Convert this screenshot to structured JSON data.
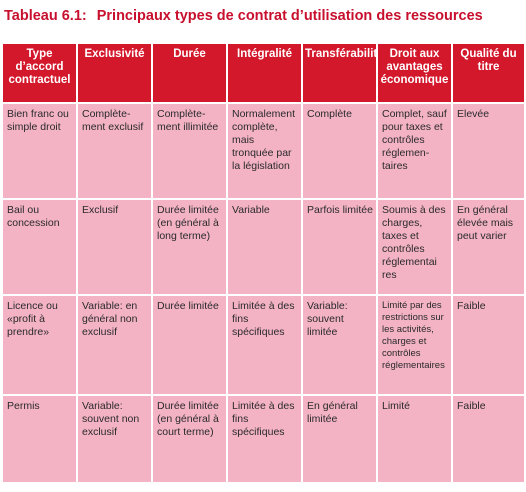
{
  "caption": {
    "number": "Tableau 6.1:",
    "title": "Principaux types de contrat d’utilisation des ressources"
  },
  "colors": {
    "caption": "#c8102e",
    "header_bg": "#d4182c",
    "header_text": "#ffffff",
    "cell_bg": "#f3b3c5",
    "cell_text": "#2a2a2a"
  },
  "table": {
    "headers": [
      "Type d’accord contractuel",
      "Exclusivité",
      "Durée",
      "Intégralité",
      "Transférabilité",
      "Droit aux avantages économique",
      "Qualité du titre"
    ],
    "rows": [
      [
        "Bien franc ou simple droit",
        "Complète-ment exclusif",
        "Complète-ment illimitée",
        "Normalement complète, mais tronquée par la législation",
        "Complète",
        "Complet, sauf pour taxes et contrôles réglemen-taires",
        "Elevée"
      ],
      [
        "Bail ou concession",
        "Exclusif",
        "Durée limitée (en général à long terme)",
        "Variable",
        "Parfois limitée",
        "Soumis à des charges, taxes et contrôles réglementai res",
        "En général élevée mais peut varier"
      ],
      [
        "Licence ou «profit à prendre»",
        "Variable: en général non exclusif",
        "Durée limitée",
        "Limitée à des fins spécifiques",
        "Variable: souvent limitée",
        "Limité par des restrictions sur les activités, charges et contrôles réglementaires",
        "Faible"
      ],
      [
        "Permis",
        "Variable: souvent non exclusif",
        "Durée limitée (en général à court terme)",
        "Limitée à des fins spécifiques",
        "En général limitée",
        "Limité",
        "Faible"
      ]
    ]
  }
}
